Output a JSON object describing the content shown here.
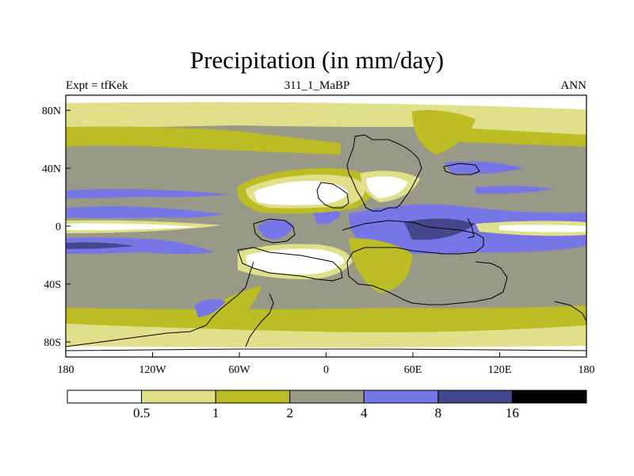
{
  "title": "Precipitation (in mm/day)",
  "left_string": "Expt = tfKek",
  "center_string": "311_1_MaBP",
  "right_string": "ANN",
  "lon_ticks": [
    "180",
    "120W",
    "60W",
    "0",
    "60E",
    "120E",
    "180"
  ],
  "lat_ticks": [
    "80N",
    "40N",
    "0",
    "40S",
    "80S"
  ],
  "colorbar": {
    "levels": [
      "0.5",
      "1",
      "2",
      "4",
      "8",
      "16"
    ],
    "colors": [
      "#ffffff",
      "#e0e08a",
      "#bcbc24",
      "#999988",
      "#7676e6",
      "#46468c",
      "#000000"
    ]
  },
  "legend_units": "mm/day"
}
